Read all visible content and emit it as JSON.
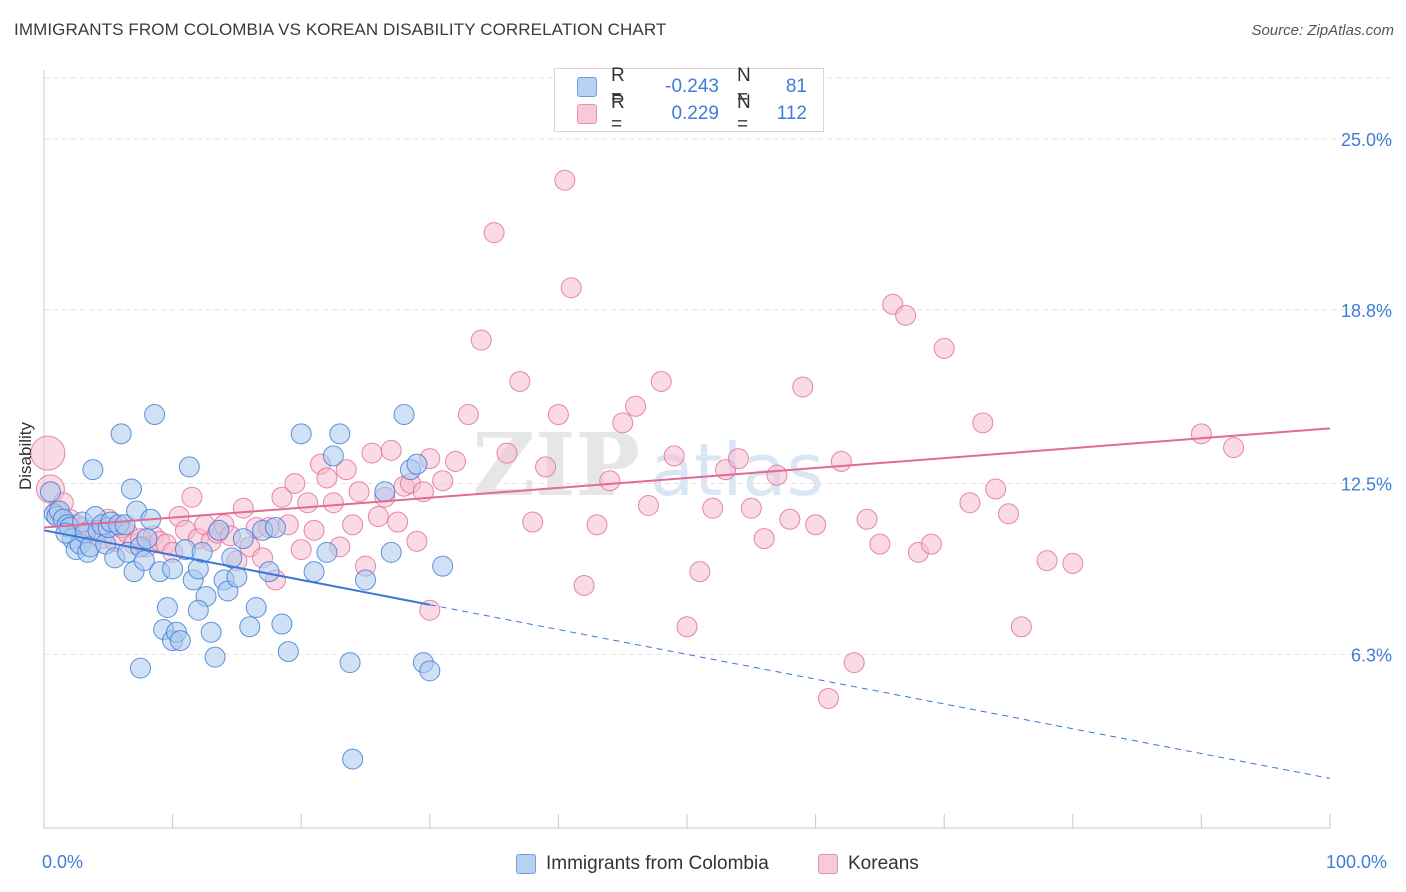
{
  "title": "IMMIGRANTS FROM COLOMBIA VS KOREAN DISABILITY CORRELATION CHART",
  "source": "Source: ZipAtlas.com",
  "colors": {
    "blue": "#3a78d4",
    "blue_fill": "#a9c8ef",
    "pink": "#e26a93",
    "pink_fill": "#f6bccf",
    "tick_text": "#3d7dd8",
    "grid": "#e3e3e3"
  },
  "legend_top": {
    "rows": [
      {
        "label": "R =",
        "r": "-0.243",
        "n_label": "N =",
        "n": "81"
      },
      {
        "label": "R =",
        "r": "0.229",
        "n_label": "N =",
        "n": "112"
      }
    ]
  },
  "watermark": {
    "zip": "ZIP",
    "atlas": "atlas"
  },
  "chart_data": {
    "type": "scatter",
    "ylabel": "Disability",
    "xlim": [
      0,
      100
    ],
    "ylim": [
      0,
      27.5
    ],
    "ytick_values": [
      6.3,
      12.5,
      18.8,
      25.0
    ],
    "ytick_labels": [
      "6.3%",
      "12.5%",
      "18.8%",
      "25.0%"
    ],
    "xtick_labels": [
      "0.0%",
      "100.0%"
    ],
    "grid": "horizontal dashed",
    "series": [
      {
        "name": "Immigrants from Colombia",
        "color": "#3a78d4",
        "trend": {
          "x": [
            0,
            30
          ],
          "y": [
            10.8,
            8.1
          ],
          "dashed_to": [
            100,
            1.8
          ]
        },
        "points": [
          [
            0.5,
            12.2
          ],
          [
            0.8,
            11.4
          ],
          [
            1.0,
            11.3
          ],
          [
            1.2,
            11.5
          ],
          [
            1.5,
            11.2
          ],
          [
            1.8,
            11.0
          ],
          [
            2.0,
            10.9
          ],
          [
            2.2,
            10.5
          ],
          [
            2.5,
            10.1
          ],
          [
            2.8,
            10.3
          ],
          [
            3.0,
            11.1
          ],
          [
            3.2,
            10.7
          ],
          [
            3.4,
            10.0
          ],
          [
            3.6,
            10.2
          ],
          [
            3.8,
            13.0
          ],
          [
            4.0,
            11.3
          ],
          [
            4.2,
            10.8
          ],
          [
            4.5,
            11.0
          ],
          [
            4.8,
            10.3
          ],
          [
            5.0,
            10.9
          ],
          [
            5.2,
            11.1
          ],
          [
            5.5,
            9.8
          ],
          [
            5.8,
            11.0
          ],
          [
            6.0,
            14.3
          ],
          [
            6.3,
            11.0
          ],
          [
            6.5,
            10.0
          ],
          [
            6.8,
            12.3
          ],
          [
            7.0,
            9.3
          ],
          [
            7.2,
            11.5
          ],
          [
            7.5,
            10.2
          ],
          [
            7.8,
            9.7
          ],
          [
            8.0,
            10.5
          ],
          [
            8.3,
            11.2
          ],
          [
            8.6,
            15.0
          ],
          [
            9.0,
            9.3
          ],
          [
            9.3,
            7.2
          ],
          [
            9.6,
            8.0
          ],
          [
            10.0,
            6.8
          ],
          [
            10.3,
            7.1
          ],
          [
            10.6,
            6.8
          ],
          [
            11.0,
            10.1
          ],
          [
            11.3,
            13.1
          ],
          [
            11.6,
            9.0
          ],
          [
            12.0,
            9.4
          ],
          [
            12.3,
            10.0
          ],
          [
            12.6,
            8.4
          ],
          [
            13.0,
            7.1
          ],
          [
            13.3,
            6.2
          ],
          [
            13.6,
            10.8
          ],
          [
            14.0,
            9.0
          ],
          [
            14.3,
            8.6
          ],
          [
            14.6,
            9.8
          ],
          [
            15.0,
            9.1
          ],
          [
            15.5,
            10.5
          ],
          [
            16.0,
            7.3
          ],
          [
            16.5,
            8.0
          ],
          [
            17.0,
            10.8
          ],
          [
            17.5,
            9.3
          ],
          [
            18.0,
            10.9
          ],
          [
            18.5,
            7.4
          ],
          [
            19.0,
            6.4
          ],
          [
            20.0,
            14.3
          ],
          [
            21.0,
            9.3
          ],
          [
            22.0,
            10.0
          ],
          [
            22.5,
            13.5
          ],
          [
            23.0,
            14.3
          ],
          [
            25.0,
            9.0
          ],
          [
            26.5,
            12.2
          ],
          [
            27.0,
            10.0
          ],
          [
            28.0,
            15.0
          ],
          [
            28.5,
            13.0
          ],
          [
            29.0,
            13.2
          ],
          [
            29.5,
            6.0
          ],
          [
            30.0,
            5.7
          ],
          [
            31.0,
            9.5
          ],
          [
            7.5,
            5.8
          ],
          [
            10.0,
            9.4
          ],
          [
            24.0,
            2.5
          ],
          [
            12.0,
            7.9
          ],
          [
            23.8,
            6.0
          ],
          [
            1.7,
            10.7
          ]
        ]
      },
      {
        "name": "Koreans",
        "color": "#e26a93",
        "trend": {
          "x": [
            0,
            100
          ],
          "y": [
            10.9,
            14.5
          ]
        },
        "points": [
          [
            0.3,
            13.6
          ],
          [
            0.5,
            12.3
          ],
          [
            1.0,
            11.5
          ],
          [
            1.5,
            11.8
          ],
          [
            2.0,
            11.2
          ],
          [
            2.5,
            11.0
          ],
          [
            3.0,
            10.9
          ],
          [
            3.5,
            10.8
          ],
          [
            4.0,
            10.6
          ],
          [
            4.5,
            10.5
          ],
          [
            5.0,
            11.2
          ],
          [
            5.5,
            10.4
          ],
          [
            6.0,
            10.9
          ],
          [
            6.5,
            10.7
          ],
          [
            7.0,
            10.3
          ],
          [
            7.5,
            10.5
          ],
          [
            8.0,
            10.2
          ],
          [
            8.5,
            10.6
          ],
          [
            9.0,
            10.4
          ],
          [
            9.5,
            10.3
          ],
          [
            10.0,
            10.0
          ],
          [
            10.5,
            11.3
          ],
          [
            11.0,
            10.8
          ],
          [
            11.5,
            12.0
          ],
          [
            12.0,
            10.5
          ],
          [
            12.5,
            11.0
          ],
          [
            13.0,
            10.4
          ],
          [
            13.5,
            10.7
          ],
          [
            14.0,
            11.0
          ],
          [
            14.5,
            10.6
          ],
          [
            15.0,
            9.7
          ],
          [
            15.5,
            11.6
          ],
          [
            16.0,
            10.2
          ],
          [
            16.5,
            10.9
          ],
          [
            17.0,
            9.8
          ],
          [
            17.5,
            10.9
          ],
          [
            18.0,
            9.0
          ],
          [
            18.5,
            12.0
          ],
          [
            19.0,
            11.0
          ],
          [
            19.5,
            12.5
          ],
          [
            20.0,
            10.1
          ],
          [
            20.5,
            11.8
          ],
          [
            21.0,
            10.8
          ],
          [
            21.5,
            13.2
          ],
          [
            22.0,
            12.7
          ],
          [
            22.5,
            11.8
          ],
          [
            23.0,
            10.2
          ],
          [
            23.5,
            13.0
          ],
          [
            24.0,
            11.0
          ],
          [
            24.5,
            12.2
          ],
          [
            25.0,
            9.5
          ],
          [
            25.5,
            13.6
          ],
          [
            26.0,
            11.3
          ],
          [
            26.5,
            12.0
          ],
          [
            27.0,
            13.7
          ],
          [
            27.5,
            11.1
          ],
          [
            28.0,
            12.4
          ],
          [
            28.5,
            12.5
          ],
          [
            29.0,
            10.4
          ],
          [
            29.5,
            12.2
          ],
          [
            30.0,
            13.4
          ],
          [
            31.0,
            12.6
          ],
          [
            32.0,
            13.3
          ],
          [
            33.0,
            15.0
          ],
          [
            34.0,
            17.7
          ],
          [
            35.0,
            21.6
          ],
          [
            36.0,
            13.6
          ],
          [
            37.0,
            16.2
          ],
          [
            38.0,
            11.1
          ],
          [
            39.0,
            13.1
          ],
          [
            40.0,
            15.0
          ],
          [
            41.0,
            19.6
          ],
          [
            42.0,
            8.8
          ],
          [
            43.0,
            11.0
          ],
          [
            44.0,
            12.6
          ],
          [
            45.0,
            14.7
          ],
          [
            46.0,
            15.3
          ],
          [
            47.0,
            11.7
          ],
          [
            48.0,
            16.2
          ],
          [
            49.0,
            13.5
          ],
          [
            50.0,
            7.3
          ],
          [
            51.0,
            9.3
          ],
          [
            52.0,
            11.6
          ],
          [
            53.0,
            13.0
          ],
          [
            54.0,
            13.4
          ],
          [
            55.0,
            11.6
          ],
          [
            56.0,
            10.5
          ],
          [
            57.0,
            12.8
          ],
          [
            58.0,
            11.2
          ],
          [
            59.0,
            16.0
          ],
          [
            60.0,
            11.0
          ],
          [
            61.0,
            4.7
          ],
          [
            62.0,
            13.3
          ],
          [
            63.0,
            6.0
          ],
          [
            64.0,
            11.2
          ],
          [
            65.0,
            10.3
          ],
          [
            66.0,
            19.0
          ],
          [
            67.0,
            18.6
          ],
          [
            68.0,
            10.0
          ],
          [
            69.0,
            10.3
          ],
          [
            70.0,
            17.4
          ],
          [
            72.0,
            11.8
          ],
          [
            73.0,
            14.7
          ],
          [
            74.0,
            12.3
          ],
          [
            75.0,
            11.4
          ],
          [
            76.0,
            7.3
          ],
          [
            78.0,
            9.7
          ],
          [
            80.0,
            9.6
          ],
          [
            90.0,
            14.3
          ],
          [
            92.5,
            13.8
          ],
          [
            40.5,
            23.5
          ],
          [
            30.0,
            7.9
          ]
        ]
      }
    ]
  },
  "bottom_legend": [
    {
      "label": "Immigrants from Colombia"
    },
    {
      "label": "Koreans"
    }
  ]
}
